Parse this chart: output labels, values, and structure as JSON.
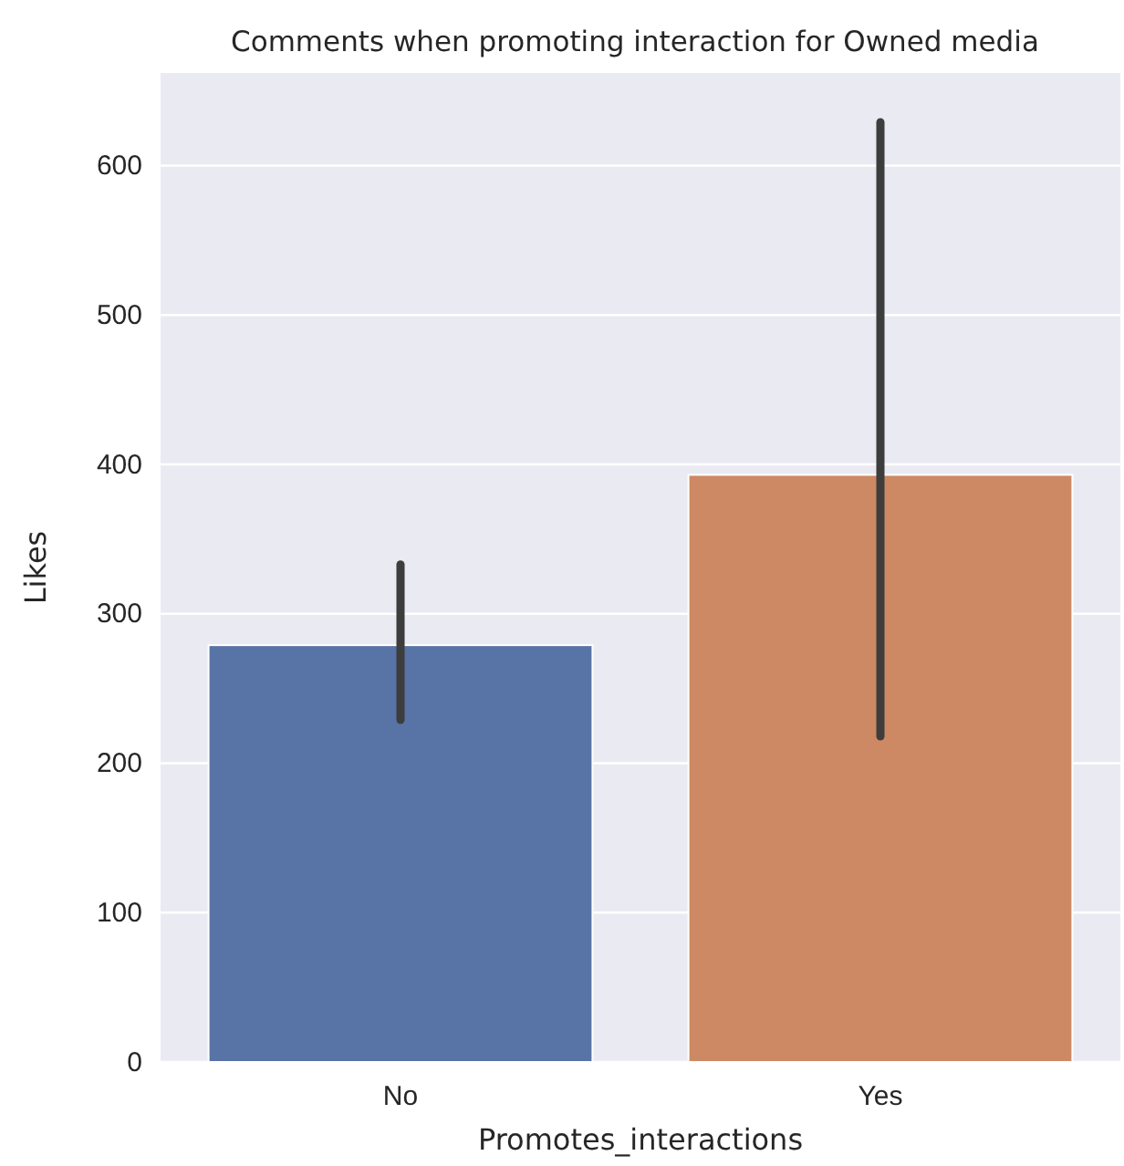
{
  "chart_data": {
    "type": "bar",
    "title": "Comments when promoting interaction for Owned media",
    "xlabel": "Promotes_interactions",
    "ylabel": "Likes",
    "categories": [
      "No",
      "Yes"
    ],
    "values": [
      279,
      393
    ],
    "colors": [
      "#5873a6",
      "#cc8963"
    ],
    "errors": [
      [
        229,
        333
      ],
      [
        218,
        629
      ]
    ],
    "ylim": [
      0,
      662
    ],
    "yticks": [
      0,
      100,
      200,
      300,
      400,
      500,
      600
    ],
    "grid": "y"
  }
}
